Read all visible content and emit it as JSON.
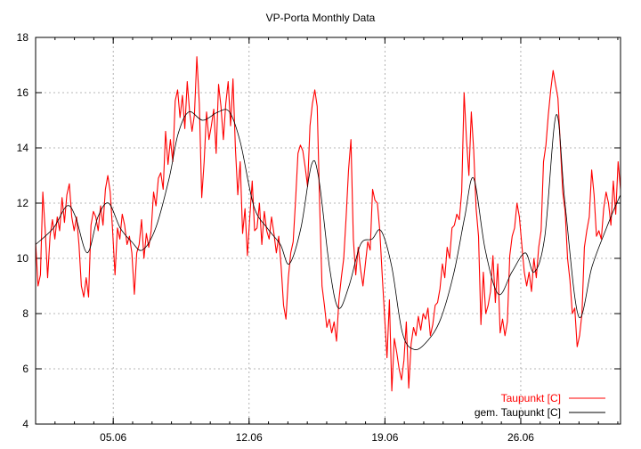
{
  "chart_data": {
    "type": "line",
    "title": "VP-Porta Monthly Data",
    "xlabel": "",
    "ylabel": "",
    "xlim": [
      0,
      30.14
    ],
    "ylim": [
      4,
      18
    ],
    "x_unit": "days since 01.06",
    "grid": true,
    "legend_position": "bottom-right",
    "yticks": [
      4,
      6,
      8,
      10,
      12,
      14,
      16,
      18
    ],
    "xticks": [
      {
        "value": 4,
        "label": "05.06"
      },
      {
        "value": 11,
        "label": "12.06"
      },
      {
        "value": 18,
        "label": "19.06"
      },
      {
        "value": 25,
        "label": "26.06"
      }
    ],
    "x_minor_step": 1,
    "series": [
      {
        "name": "Taupunkt [C]",
        "color": "#ff0000",
        "sampling": "evenly spaced over xlim",
        "values": [
          10.6,
          9.0,
          9.4,
          12.4,
          11.0,
          9.3,
          10.8,
          11.4,
          10.7,
          11.5,
          11.0,
          12.2,
          11.3,
          12.3,
          12.7,
          11.5,
          11.0,
          11.5,
          10.5,
          9.0,
          8.6,
          9.3,
          8.6,
          11.2,
          11.7,
          11.5,
          11.0,
          11.9,
          11.2,
          12.5,
          13.0,
          12.4,
          11.0,
          9.4,
          11.1,
          10.7,
          11.6,
          11.2,
          10.5,
          10.8,
          10.2,
          8.7,
          10.2,
          10.5,
          11.4,
          10.0,
          10.9,
          10.4,
          11.0,
          12.4,
          11.9,
          12.9,
          13.1,
          12.5,
          14.6,
          13.4,
          14.3,
          13.5,
          15.7,
          16.1,
          15.1,
          15.9,
          14.7,
          16.4,
          15.3,
          14.6,
          15.2,
          17.3,
          15.6,
          12.2,
          13.5,
          15.3,
          14.3,
          14.8,
          15.4,
          13.8,
          16.3,
          15.5,
          14.3,
          15.6,
          16.4,
          14.8,
          16.5,
          14.0,
          12.3,
          13.5,
          10.9,
          11.8,
          10.1,
          11.5,
          12.8,
          11.0,
          11.1,
          12.0,
          10.5,
          11.7,
          11.0,
          10.7,
          11.5,
          10.9,
          10.2,
          10.8,
          9.7,
          8.3,
          7.8,
          9.3,
          10.2,
          10.6,
          12.1,
          13.8,
          14.1,
          13.9,
          13.3,
          12.6,
          14.8,
          15.6,
          16.1,
          15.5,
          12.0,
          9.0,
          8.3,
          7.5,
          7.8,
          7.3,
          7.7,
          7.0,
          8.5,
          9.3,
          10.0,
          11.5,
          13.2,
          14.3,
          10.7,
          9.4,
          10.4,
          9.6,
          9.0,
          9.8,
          10.6,
          10.3,
          12.5,
          12.1,
          12.0,
          11.0,
          9.4,
          7.9,
          6.4,
          8.5,
          5.2,
          7.1,
          6.6,
          6.0,
          5.6,
          6.3,
          7.7,
          5.3,
          6.9,
          7.5,
          7.2,
          7.9,
          7.4,
          8.0,
          7.8,
          8.2,
          7.2,
          7.6,
          8.3,
          8.4,
          8.9,
          9.8,
          9.3,
          10.4,
          10.0,
          11.1,
          11.2,
          11.6,
          11.4,
          12.4,
          16.0,
          14.3,
          13.0,
          15.3,
          13.9,
          11.8,
          10.8,
          7.6,
          9.5,
          8.0,
          8.3,
          8.8,
          10.1,
          8.4,
          9.8,
          7.3,
          7.8,
          7.2,
          7.7,
          10.1,
          10.8,
          11.1,
          12.0,
          11.5,
          10.5,
          9.5,
          9.0,
          9.5,
          8.8,
          10.0,
          9.3,
          10.4,
          11.0,
          13.5,
          14.1,
          15.2,
          16.1,
          16.8,
          16.3,
          15.8,
          14.1,
          12.4,
          11.7,
          10.0,
          9.2,
          8.0,
          8.2,
          6.8,
          7.2,
          8.0,
          10.4,
          11.0,
          11.5,
          13.2,
          12.3,
          10.8,
          11.0,
          10.7,
          11.8,
          12.4,
          12.0,
          11.2,
          12.8,
          11.6,
          13.5,
          12.5
        ]
      },
      {
        "name": "gem. Taupunkt [C]",
        "color": "#000000",
        "x": [
          0,
          0.92,
          1.61,
          2.06,
          2.66,
          3.21,
          3.76,
          4.36,
          4.95,
          5.5,
          6.19,
          6.88,
          7.34,
          7.89,
          8.62,
          9.4,
          9.99,
          10.55,
          11.24,
          11.93,
          12.61,
          13.07,
          13.67,
          14.22,
          14.59,
          15.14,
          15.6,
          16.15,
          16.74,
          17.34,
          17.8,
          18.35,
          18.9,
          19.5,
          20.18,
          20.87,
          21.56,
          22.11,
          22.57,
          23.17,
          23.85,
          24.54,
          25.23,
          25.69,
          26.24,
          26.83,
          27.29,
          27.98,
          28.67,
          29.36,
          29.82,
          30.14
        ],
        "values": [
          10.5,
          11.1,
          11.9,
          11.5,
          10.2,
          11.5,
          12.0,
          11.1,
          10.6,
          10.3,
          11.1,
          12.9,
          14.5,
          15.3,
          15.0,
          15.3,
          15.3,
          14.2,
          11.9,
          11.1,
          10.5,
          9.8,
          11.1,
          13.4,
          12.9,
          9.7,
          8.2,
          9.0,
          10.5,
          10.7,
          11.0,
          9.7,
          7.3,
          6.7,
          7.0,
          7.8,
          9.5,
          11.5,
          12.9,
          10.3,
          8.7,
          9.5,
          10.2,
          9.5,
          10.8,
          15.2,
          11.9,
          7.9,
          9.7,
          11.0,
          11.8,
          12.3
        ]
      }
    ]
  }
}
